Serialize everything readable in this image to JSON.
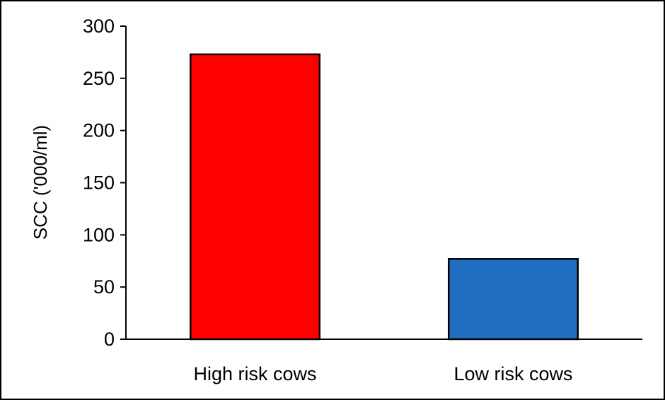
{
  "chart_data": {
    "type": "bar",
    "title": "",
    "xlabel": "",
    "ylabel": "SCC ('000/ml)",
    "ylim": [
      0,
      300
    ],
    "yticks": [
      0,
      50,
      100,
      150,
      200,
      250,
      300
    ],
    "grid": false,
    "legend": "none",
    "categories": [
      "High risk cows",
      "Low risk cows"
    ],
    "values": [
      273,
      77
    ],
    "colors": [
      "#ff0000",
      "#1f6ec0"
    ]
  }
}
